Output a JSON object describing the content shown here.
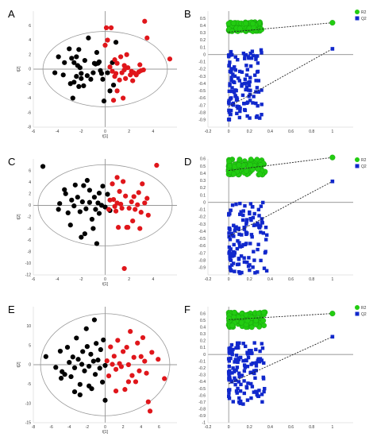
{
  "figure": {
    "panel_labels": [
      "A",
      "B",
      "C",
      "D",
      "E",
      "F"
    ]
  },
  "colors": {
    "group_black": "#000000",
    "group_red": "#e0161b",
    "r2_green": "#22cc11",
    "q2_blue": "#1128cc",
    "ellipse": "#999999",
    "axis": "#777777"
  },
  "chart_data": [
    {
      "panel": "A",
      "type": "scatter",
      "xlabel": "t[1]",
      "ylabel": "t[2]",
      "xlim": [
        -6,
        6
      ],
      "ylim": [
        -8,
        8
      ],
      "xticks": [
        "-6",
        "-4",
        "-2",
        "0",
        "2",
        "4"
      ],
      "yticks": [
        "-8",
        "-6",
        "-4",
        "-2",
        "0",
        "2",
        "4",
        "6"
      ],
      "hotelling_ellipse": {
        "a": 5.2,
        "b": 5.2
      },
      "groups": [
        {
          "color": "black",
          "points": [
            [
              -3.9,
              1.7
            ],
            [
              -3.4,
              0.9
            ],
            [
              -3.0,
              2.8
            ],
            [
              -2.8,
              1.5
            ],
            [
              -2.6,
              0.9
            ],
            [
              -2.4,
              1.7
            ],
            [
              -2.3,
              0.5
            ],
            [
              -2.2,
              2.7
            ],
            [
              -2.1,
              0.2
            ],
            [
              -2.0,
              -0.6
            ],
            [
              -2.4,
              -1.0
            ],
            [
              -2.2,
              -2.4
            ],
            [
              -2.0,
              -1.3
            ],
            [
              -1.7,
              1.2
            ],
            [
              -1.5,
              -0.9
            ],
            [
              -1.2,
              -1.4
            ],
            [
              -1.0,
              -0.5
            ],
            [
              -0.9,
              0.8
            ],
            [
              -0.8,
              0.7
            ],
            [
              -0.7,
              2.3
            ],
            [
              -0.5,
              1.0
            ],
            [
              -1.4,
              4.3
            ],
            [
              -3.5,
              -0.8
            ],
            [
              -2.6,
              -1.8
            ],
            [
              -0.6,
              0.8
            ],
            [
              -0.4,
              -0.2
            ],
            [
              -0.2,
              -1.4
            ],
            [
              -0.3,
              -0.6
            ],
            [
              -0.1,
              -4.4
            ],
            [
              0.2,
              -0.5
            ],
            [
              0.4,
              -3.0
            ],
            [
              0.6,
              0.9
            ],
            [
              0.7,
              -2.2
            ],
            [
              0.9,
              3.7
            ],
            [
              -4.2,
              -0.5
            ],
            [
              -1.8,
              -2.3
            ],
            [
              -2.9,
              -2.0
            ],
            [
              -2.7,
              -4.0
            ]
          ]
        },
        {
          "color": "red",
          "points": [
            [
              0.1,
              5.7
            ],
            [
              0.0,
              3.3
            ],
            [
              0.5,
              5.7
            ],
            [
              0.8,
              1.3
            ],
            [
              1.0,
              0.8
            ],
            [
              0.9,
              -0.6
            ],
            [
              0.8,
              -1.0
            ],
            [
              1.2,
              -1.5
            ],
            [
              1.4,
              -0.5
            ],
            [
              1.6,
              0.5
            ],
            [
              1.7,
              -1.3
            ],
            [
              1.8,
              2.0
            ],
            [
              1.9,
              0.2
            ],
            [
              2.2,
              -0.3
            ],
            [
              2.3,
              -1.6
            ],
            [
              2.6,
              -0.8
            ],
            [
              2.8,
              -0.4
            ],
            [
              2.9,
              0.6
            ],
            [
              3.0,
              -0.2
            ],
            [
              3.2,
              -0.1
            ],
            [
              3.5,
              4.3
            ],
            [
              3.3,
              6.6
            ],
            [
              5.4,
              1.4
            ],
            [
              2.1,
              -0.8
            ],
            [
              1.5,
              -4.0
            ],
            [
              1.0,
              -3.0
            ],
            [
              0.7,
              -4.3
            ],
            [
              0.6,
              -0.3
            ],
            [
              1.3,
              1.7
            ],
            [
              0.2,
              4.0
            ],
            [
              0.4,
              0.3
            ],
            [
              1.6,
              -0.1
            ],
            [
              2.4,
              -0.5
            ]
          ]
        }
      ]
    },
    {
      "panel": "B",
      "type": "scatter",
      "xlim": [
        -0.2,
        1.2
      ],
      "ylim": [
        -1.0,
        0.6
      ],
      "xticks": [
        "-0.2",
        "0",
        "0.2",
        "0.4",
        "0.6",
        "0.8",
        "1"
      ],
      "yticks": [
        "-0.9",
        "-0.8",
        "-0.7",
        "-0.6",
        "-0.5",
        "-0.4",
        "-0.3",
        "-0.2",
        "-0.1",
        "0",
        "0.1",
        "0.2",
        "0.3",
        "0.4",
        "0.5"
      ],
      "legend": [
        "R2",
        "Q2"
      ],
      "intercepts": {
        "R2": [
          [
            0.0,
            0.31
          ],
          [
            1.0,
            0.44
          ]
        ],
        "Q2": [
          [
            0.0,
            -0.72
          ],
          [
            1.0,
            0.08
          ]
        ]
      },
      "r2_box": {
        "x0": 0.0,
        "x1": 0.32,
        "y0": 0.32,
        "y1": 0.45
      },
      "q2_box": {
        "x0": 0.0,
        "x1": 0.32,
        "y0": -0.9,
        "y1": 0.07
      },
      "r2_end": [
        1.0,
        0.44
      ],
      "q2_end": [
        1.0,
        0.08
      ]
    },
    {
      "panel": "C",
      "type": "scatter",
      "xlabel": "t[1]",
      "ylabel": "t[2]",
      "xlim": [
        -6,
        6
      ],
      "ylim": [
        -12,
        8
      ],
      "xticks": [
        "-6",
        "-4",
        "-2",
        "0",
        "2",
        "4"
      ],
      "yticks": [
        "-12",
        "-10",
        "-8",
        "-6",
        "-4",
        "-2",
        "0",
        "2",
        "4",
        "6"
      ],
      "hotelling_ellipse": {
        "a": 5.6,
        "b": 7.0
      },
      "groups": [
        {
          "color": "black",
          "points": [
            [
              -5.2,
              6.7
            ],
            [
              -3.8,
              0.3
            ],
            [
              -3.3,
              2.0
            ],
            [
              -3.1,
              -1.3
            ],
            [
              -2.8,
              0.9
            ],
            [
              -2.6,
              -0.1
            ],
            [
              -2.5,
              3.5
            ],
            [
              -2.3,
              1.4
            ],
            [
              -2.1,
              -1.1
            ],
            [
              -1.9,
              0.6
            ],
            [
              -1.8,
              3.4
            ],
            [
              -1.6,
              -0.6
            ],
            [
              -1.5,
              4.3
            ],
            [
              -1.3,
              2.6
            ],
            [
              -1.1,
              -2.4
            ],
            [
              -1.0,
              -4.0
            ],
            [
              -0.9,
              1.4
            ],
            [
              -0.8,
              -0.7
            ],
            [
              -0.6,
              0.4
            ],
            [
              -0.5,
              -1.4
            ],
            [
              -0.3,
              0.0
            ],
            [
              -0.2,
              3.3
            ],
            [
              0.0,
              -0.3
            ],
            [
              0.2,
              1.9
            ],
            [
              -2.0,
              -5.5
            ],
            [
              -1.7,
              -4.9
            ],
            [
              -0.7,
              -6.6
            ],
            [
              -2.9,
              -3.4
            ],
            [
              -3.4,
              2.7
            ],
            [
              -0.5,
              2.1
            ],
            [
              -1.3,
              0.5
            ],
            [
              -3.9,
              -0.7
            ],
            [
              0.4,
              -0.9
            ]
          ]
        },
        {
          "color": "red",
          "points": [
            [
              0.4,
              0.9
            ],
            [
              0.6,
              3.7
            ],
            [
              0.8,
              -0.2
            ],
            [
              1.0,
              0.4
            ],
            [
              1.2,
              2.4
            ],
            [
              1.4,
              -0.5
            ],
            [
              1.5,
              4.1
            ],
            [
              1.7,
              1.6
            ],
            [
              1.8,
              -3.8
            ],
            [
              2.0,
              -0.5
            ],
            [
              2.2,
              0.6
            ],
            [
              2.4,
              1.5
            ],
            [
              2.5,
              -0.7
            ],
            [
              2.7,
              0.1
            ],
            [
              2.8,
              2.2
            ],
            [
              3.0,
              -1.2
            ],
            [
              3.1,
              3.7
            ],
            [
              3.3,
              0.4
            ],
            [
              4.3,
              6.9
            ],
            [
              1.1,
              -3.8
            ],
            [
              1.9,
              -3.8
            ],
            [
              1.6,
              -10.9
            ],
            [
              3.5,
              1.2
            ],
            [
              0.9,
              -1.0
            ],
            [
              1.3,
              0.2
            ],
            [
              2.9,
              -4.0
            ],
            [
              0.3,
              -0.7
            ],
            [
              2.3,
              -2.7
            ],
            [
              3.6,
              -1.7
            ],
            [
              0.7,
              1.0
            ],
            [
              1.0,
              4.8
            ]
          ]
        }
      ]
    },
    {
      "panel": "D",
      "type": "scatter",
      "xlim": [
        -0.2,
        1.2
      ],
      "ylim": [
        -1.0,
        0.6
      ],
      "xticks": [
        "-0.2",
        "0",
        "0.2",
        "0.4",
        "0.6",
        "0.8",
        "1"
      ],
      "yticks": [
        "-0.9",
        "-0.8",
        "-0.7",
        "-0.6",
        "-0.5",
        "-0.4",
        "-0.3",
        "-0.2",
        "-0.1",
        "0",
        "0.1",
        "0.2",
        "0.3",
        "0.4",
        "0.5",
        "0.6"
      ],
      "legend": [
        "R2",
        "Q2"
      ],
      "intercepts": {
        "R2": [
          [
            0.0,
            0.44
          ],
          [
            1.0,
            0.62
          ]
        ],
        "Q2": [
          [
            0.0,
            -0.47
          ],
          [
            1.0,
            0.29
          ]
        ]
      },
      "r2_box": {
        "x0": 0.0,
        "x1": 0.36,
        "y0": 0.38,
        "y1": 0.6
      },
      "q2_box": {
        "x0": 0.0,
        "x1": 0.37,
        "y0": -0.98,
        "y1": 0.0
      },
      "r2_end": [
        1.0,
        0.62
      ],
      "q2_end": [
        1.0,
        0.29
      ]
    },
    {
      "panel": "E",
      "type": "scatter",
      "xlabel": "t[1]",
      "ylabel": "t[2]",
      "xlim": [
        -8,
        8
      ],
      "ylim": [
        -15,
        15
      ],
      "xticks": [
        "-8",
        "-6",
        "-4",
        "-2",
        "0",
        "2",
        "4",
        "6"
      ],
      "yticks": [
        "-15",
        "-10",
        "-5",
        "0",
        "5",
        "10"
      ],
      "hotelling_ellipse": {
        "a": 7.2,
        "b": 13.2
      },
      "groups": [
        {
          "color": "black",
          "points": [
            [
              -6.6,
              2.1
            ],
            [
              -5.5,
              -0.7
            ],
            [
              -5.0,
              3.5
            ],
            [
              -4.8,
              -1.8
            ],
            [
              -4.5,
              -2.5
            ],
            [
              -4.2,
              4.5
            ],
            [
              -4.0,
              0.6
            ],
            [
              -3.8,
              -3.1
            ],
            [
              -3.6,
              2.0
            ],
            [
              -3.4,
              -0.8
            ],
            [
              -3.2,
              6.9
            ],
            [
              -3.0,
              1.4
            ],
            [
              -2.8,
              -5.1
            ],
            [
              -2.6,
              0.1
            ],
            [
              -2.5,
              3.4
            ],
            [
              -2.3,
              -1.6
            ],
            [
              -2.1,
              9.3
            ],
            [
              -2.0,
              4.7
            ],
            [
              -1.8,
              -0.4
            ],
            [
              -1.6,
              2.7
            ],
            [
              -1.5,
              -6.2
            ],
            [
              -1.3,
              0.9
            ],
            [
              -1.1,
              -2.5
            ],
            [
              -1.0,
              5.5
            ],
            [
              -0.8,
              1.2
            ],
            [
              -0.6,
              -0.9
            ],
            [
              -0.5,
              3.9
            ],
            [
              -0.3,
              -4.5
            ],
            [
              -0.2,
              6.4
            ],
            [
              0.0,
              -0.2
            ],
            [
              -4.9,
              -3.5
            ],
            [
              -3.4,
              -7.0
            ],
            [
              -1.2,
              11.6
            ],
            [
              0.0,
              -9.2
            ],
            [
              -2.8,
              -7.8
            ],
            [
              -1.8,
              -5.5
            ]
          ]
        },
        {
          "color": "red",
          "points": [
            [
              0.2,
              1.0
            ],
            [
              0.4,
              -2.9
            ],
            [
              0.6,
              4.6
            ],
            [
              0.8,
              0.1
            ],
            [
              1.0,
              2.2
            ],
            [
              1.2,
              -1.2
            ],
            [
              1.4,
              6.3
            ],
            [
              1.6,
              0.3
            ],
            [
              1.8,
              -0.5
            ],
            [
              2.0,
              3.4
            ],
            [
              2.2,
              -6.4
            ],
            [
              2.4,
              4.5
            ],
            [
              2.6,
              0.0
            ],
            [
              2.8,
              8.6
            ],
            [
              3.0,
              -2.8
            ],
            [
              3.2,
              1.9
            ],
            [
              3.4,
              -4.4
            ],
            [
              3.6,
              5.6
            ],
            [
              3.8,
              -1.6
            ],
            [
              4.0,
              2.1
            ],
            [
              4.2,
              7.0
            ],
            [
              4.4,
              0.9
            ],
            [
              4.6,
              -2.2
            ],
            [
              4.8,
              -9.6
            ],
            [
              5.0,
              -12.0
            ],
            [
              5.2,
              3.2
            ],
            [
              6.6,
              -3.6
            ],
            [
              5.9,
              1.4
            ],
            [
              1.2,
              -6.8
            ],
            [
              2.6,
              -4.4
            ]
          ]
        }
      ]
    },
    {
      "panel": "F",
      "type": "scatter",
      "xlim": [
        -0.2,
        1.2
      ],
      "ylim": [
        -1.0,
        0.7
      ],
      "xticks": [
        "-0.2",
        "0",
        "0.2",
        "0.4",
        "0.6",
        "0.8",
        "1"
      ],
      "yticks": [
        "-1",
        "-0.9",
        "-0.8",
        "-0.7",
        "-0.6",
        "-0.5",
        "-0.4",
        "-0.3",
        "-0.2",
        "-0.1",
        "0",
        "0.1",
        "0.2",
        "0.3",
        "0.4",
        "0.5",
        "0.6"
      ],
      "legend": [
        "R2",
        "Q2"
      ],
      "intercepts": {
        "R2": [
          [
            0.0,
            0.51
          ],
          [
            1.0,
            0.6
          ]
        ],
        "Q2": [
          [
            0.0,
            -0.43
          ],
          [
            1.0,
            0.26
          ]
        ]
      },
      "r2_box": {
        "x0": 0.0,
        "x1": 0.35,
        "y0": 0.4,
        "y1": 0.62
      },
      "q2_box": {
        "x0": 0.0,
        "x1": 0.35,
        "y0": -0.73,
        "y1": 0.18
      },
      "r2_end": [
        1.0,
        0.6
      ],
      "q2_end": [
        1.0,
        0.26
      ]
    }
  ]
}
